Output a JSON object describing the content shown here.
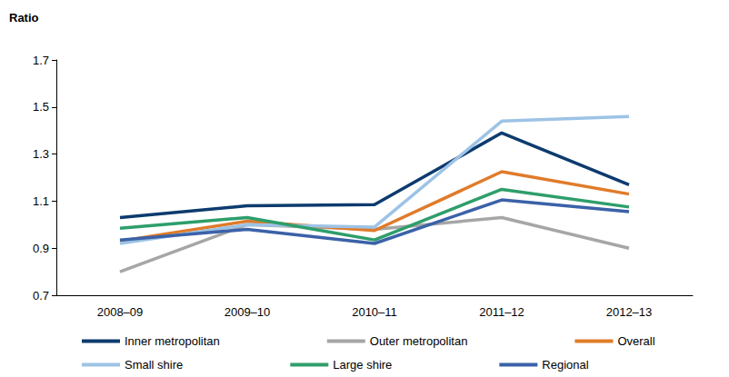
{
  "chart_data": {
    "type": "line",
    "y_label": "Ratio",
    "categories": [
      "2008–09",
      "2009–10",
      "2010–11",
      "2011–12",
      "2012–13"
    ],
    "series": [
      {
        "name": "Inner metropolitan",
        "color": "#0d3b6e",
        "values": [
          1.03,
          1.08,
          1.085,
          1.39,
          1.17
        ]
      },
      {
        "name": "Outer metropolitan",
        "color": "#a6a6a6",
        "values": [
          0.8,
          1.0,
          0.98,
          1.03,
          0.9
        ]
      },
      {
        "name": "Overall",
        "color": "#e07b2a",
        "values": [
          0.93,
          1.015,
          0.975,
          1.225,
          1.13
        ]
      },
      {
        "name": "Small shire",
        "color": "#9dc3e6",
        "values": [
          0.92,
          1.0,
          0.99,
          1.44,
          1.46
        ]
      },
      {
        "name": "Large shire",
        "color": "#2e9e6b",
        "values": [
          0.985,
          1.03,
          0.935,
          1.15,
          1.075
        ]
      },
      {
        "name": "Regional",
        "color": "#3b62a8",
        "values": [
          0.935,
          0.98,
          0.92,
          1.105,
          1.055
        ]
      }
    ],
    "ylim": [
      0.7,
      1.7
    ],
    "yticks": [
      0.7,
      0.9,
      1.1,
      1.3,
      1.5,
      1.7
    ],
    "grid": false,
    "legend": "bottom"
  }
}
